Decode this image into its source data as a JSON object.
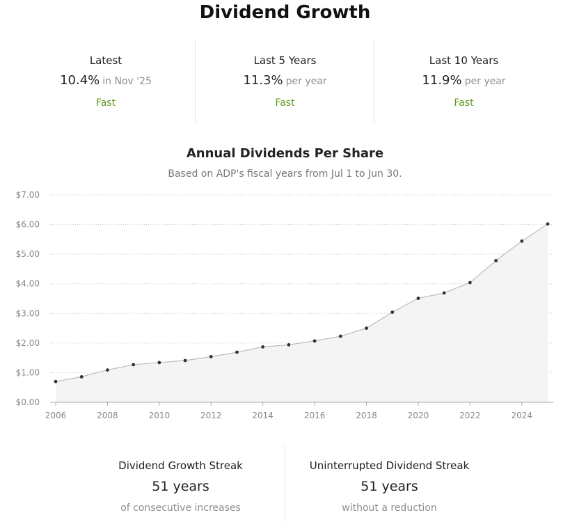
{
  "title": "Dividend Growth",
  "stats": [
    {
      "label": "Latest",
      "value": "10.4%",
      "sub": "in Nov '25",
      "rating": "Fast"
    },
    {
      "label": "Last 5 Years",
      "value": "11.3%",
      "sub": "per year",
      "rating": "Fast"
    },
    {
      "label": "Last 10 Years",
      "value": "11.9%",
      "sub": "per year",
      "rating": "Fast"
    }
  ],
  "colors": {
    "rating": "#5f9a1d",
    "line": "#bbbbbb",
    "area": "#f4f4f4",
    "point": "#333333",
    "grid": "#cccccc",
    "axis_text": "#888888"
  },
  "chart_data": {
    "type": "area",
    "title": "Annual Dividends Per Share",
    "subtitle": "Based on ADP's fiscal years from Jul 1 to Jun 30.",
    "x": [
      2006,
      2007,
      2008,
      2009,
      2010,
      2011,
      2012,
      2013,
      2014,
      2015,
      2016,
      2017,
      2018,
      2019,
      2020,
      2021,
      2022,
      2023,
      2024,
      2025
    ],
    "values": [
      0.7,
      0.86,
      1.09,
      1.27,
      1.34,
      1.41,
      1.54,
      1.69,
      1.87,
      1.94,
      2.07,
      2.23,
      2.5,
      3.04,
      3.51,
      3.69,
      4.04,
      4.78,
      5.44,
      6.02
    ],
    "ylim": [
      0,
      7
    ],
    "y_ticks": [
      "$0.00",
      "$1.00",
      "$2.00",
      "$3.00",
      "$4.00",
      "$5.00",
      "$6.00",
      "$7.00"
    ],
    "x_ticks": [
      "2006",
      "2008",
      "2010",
      "2012",
      "2014",
      "2016",
      "2018",
      "2020",
      "2022",
      "2024"
    ],
    "xlabel": "",
    "ylabel": "",
    "grid": true,
    "legend": "none"
  },
  "streaks": [
    {
      "label": "Dividend Growth Streak",
      "value": "51 years",
      "sub": "of consecutive increases"
    },
    {
      "label": "Uninterrupted Dividend Streak",
      "value": "51 years",
      "sub": "without a reduction"
    }
  ]
}
